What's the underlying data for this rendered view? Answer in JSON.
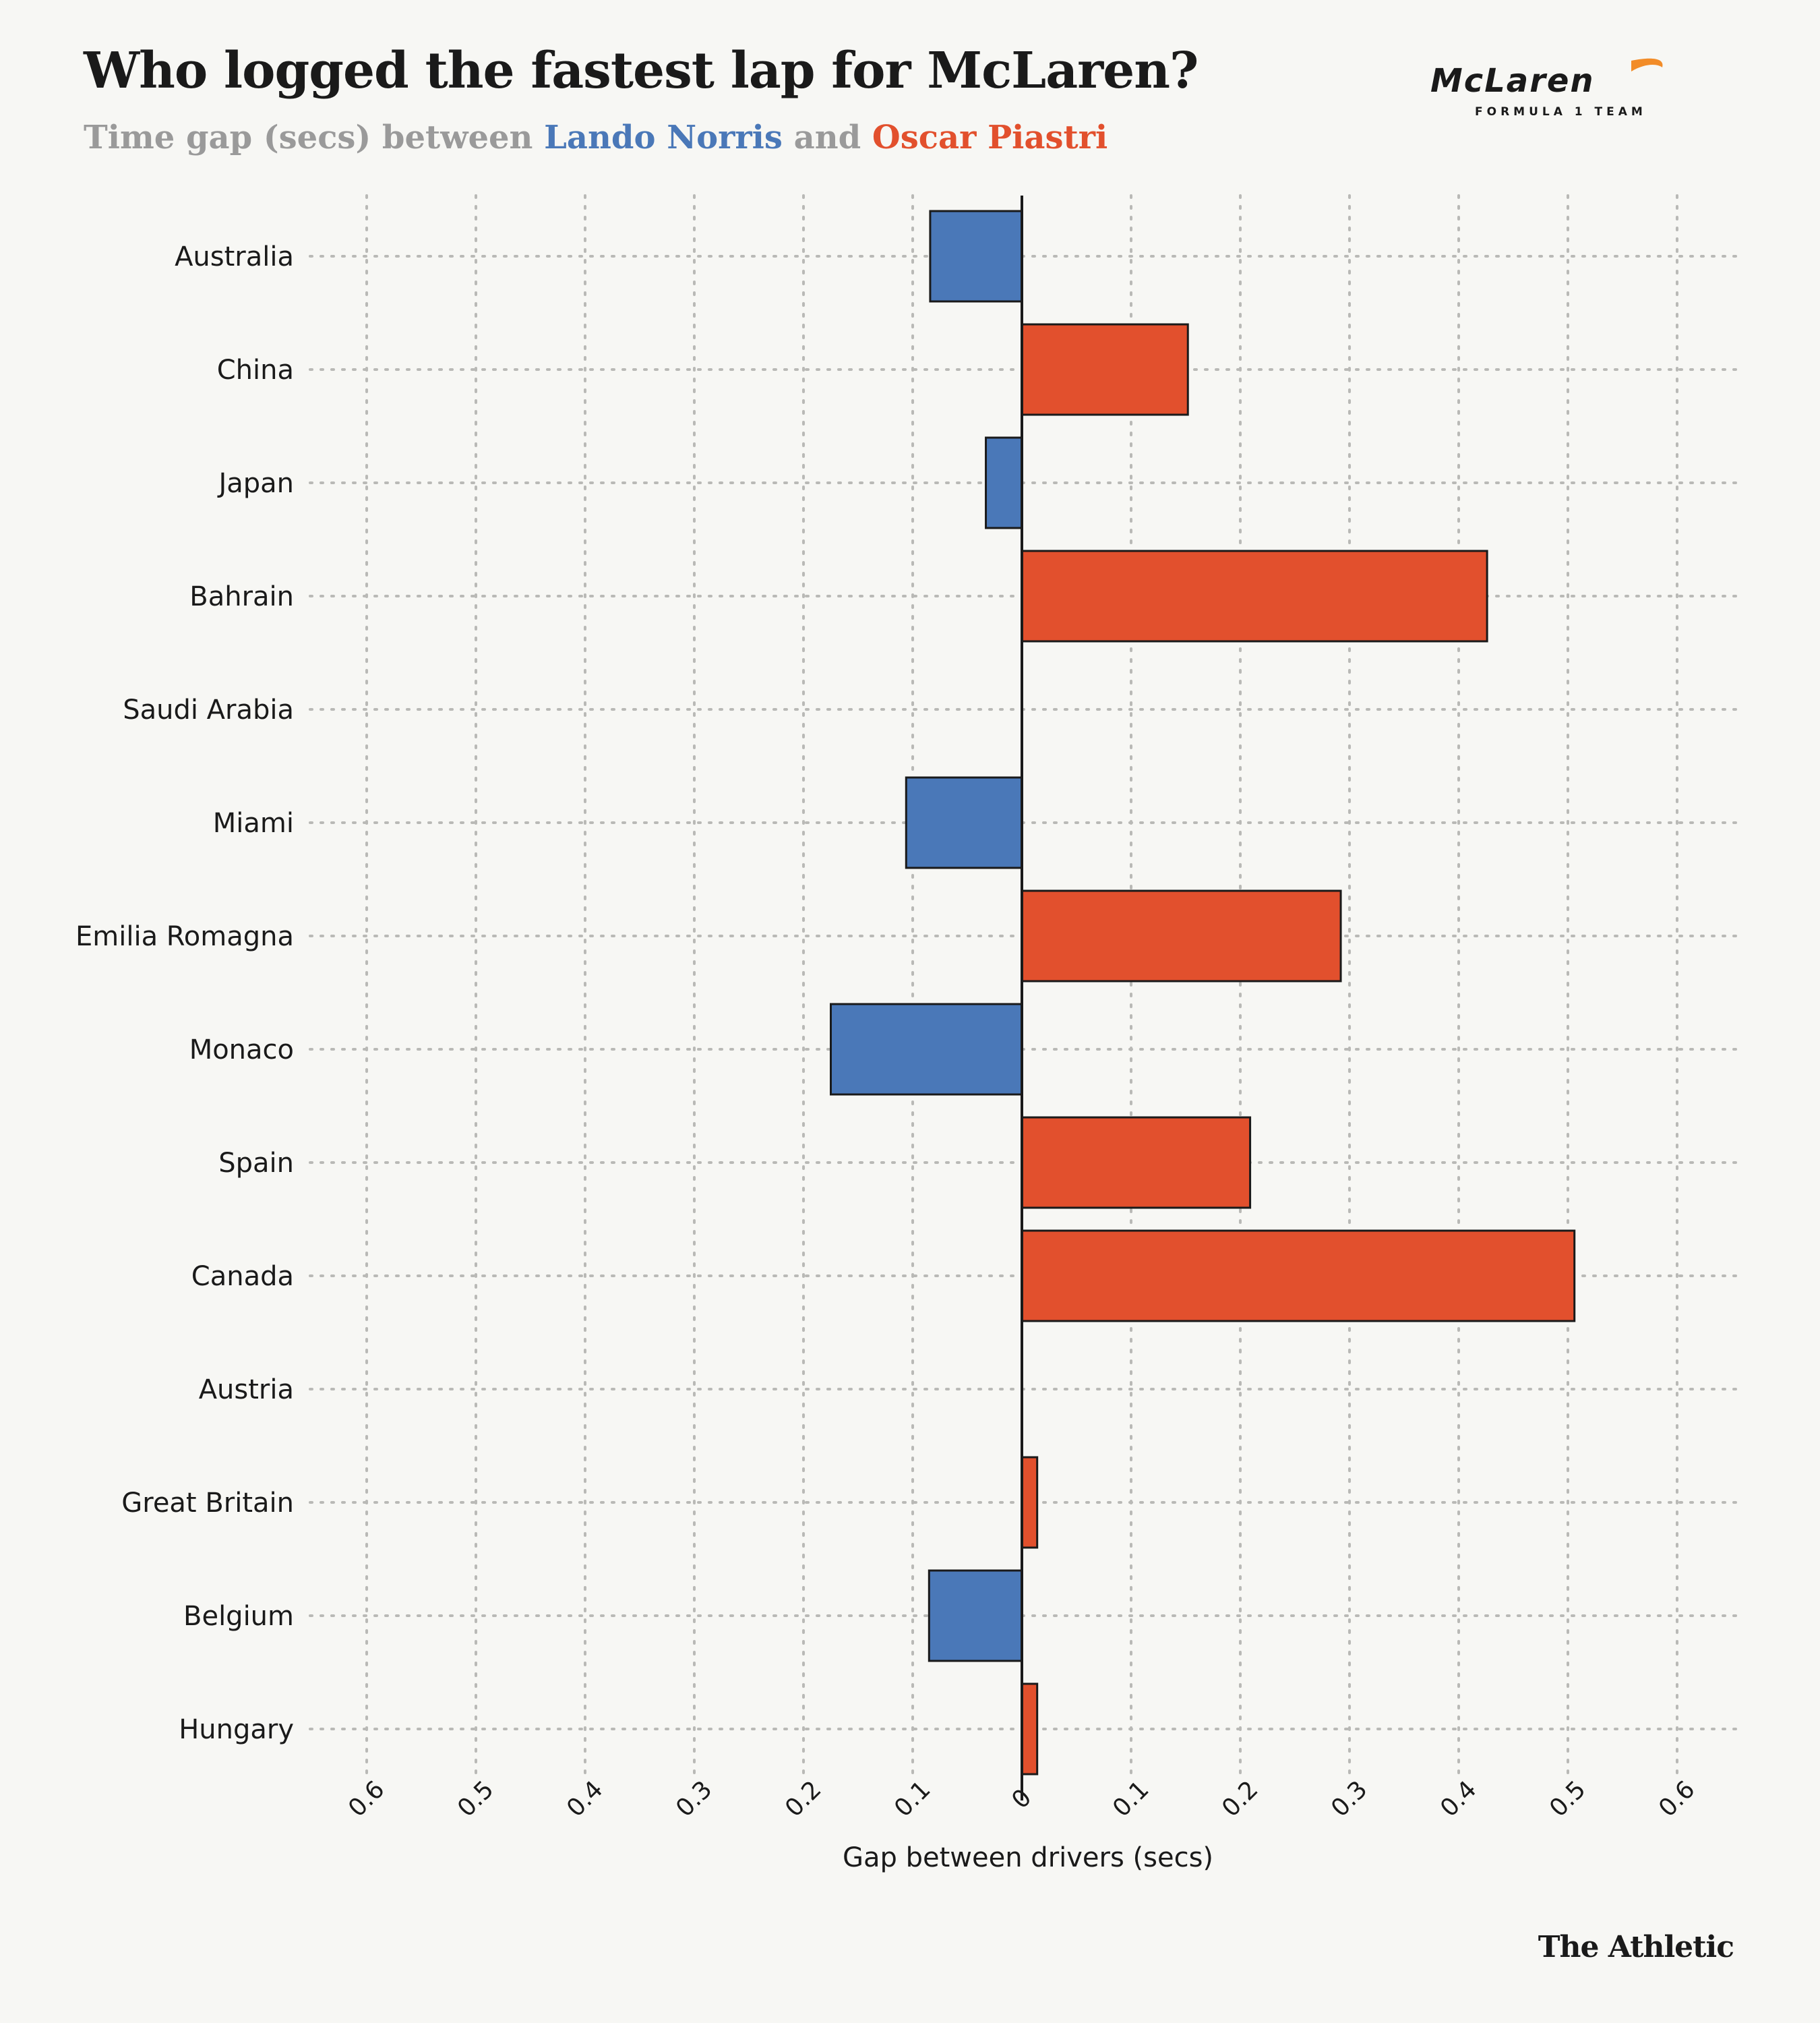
{
  "header": {
    "title": "Who logged the fastest lap for McLaren?",
    "subtitle_prefix": "Time gap (secs) between ",
    "driver_a": "Lando Norris",
    "subtitle_mid": " and ",
    "driver_b": "Oscar Piastri"
  },
  "logo": {
    "name": "McLaren",
    "sub": "FORMULA 1 TEAM",
    "accent_color": "#f28c28"
  },
  "colors": {
    "norris": "#4a78b8",
    "piastri": "#e2502d",
    "background": "#f7f7f4",
    "grid": "#b9b9b6"
  },
  "chart_data": {
    "type": "bar",
    "orientation": "horizontal-diverging",
    "categories": [
      "Australia",
      "China",
      "Japan",
      "Bahrain",
      "Saudi Arabia",
      "Miami",
      "Emilia Romagna",
      "Monaco",
      "Spain",
      "Canada",
      "Austria",
      "Great Britain",
      "Belgium",
      "Hungary"
    ],
    "series": [
      {
        "name": "Lando Norris",
        "color": "#4a78b8",
        "values": [
          0.084,
          0,
          0.033,
          0,
          0,
          0.106,
          0,
          0.175,
          0,
          0,
          0,
          0,
          0.085,
          0
        ]
      },
      {
        "name": "Oscar Piastri",
        "color": "#e2502d",
        "values": [
          0,
          0.152,
          0,
          0.426,
          0,
          0,
          0.292,
          0,
          0.209,
          0.506,
          0,
          0.014,
          0,
          0.014
        ]
      }
    ],
    "xticks": [
      "0.6",
      "0.5",
      "0.4",
      "0.3",
      "0.2",
      "0.1",
      "0",
      "0.1",
      "0.2",
      "0.3",
      "0.4",
      "0.5",
      "0.6"
    ],
    "xlim": [
      -0.6,
      0.6
    ],
    "xlabel": "Gap between drivers (secs)",
    "ylabel": "",
    "grid": true
  },
  "footer": {
    "source": "The Athletic"
  }
}
